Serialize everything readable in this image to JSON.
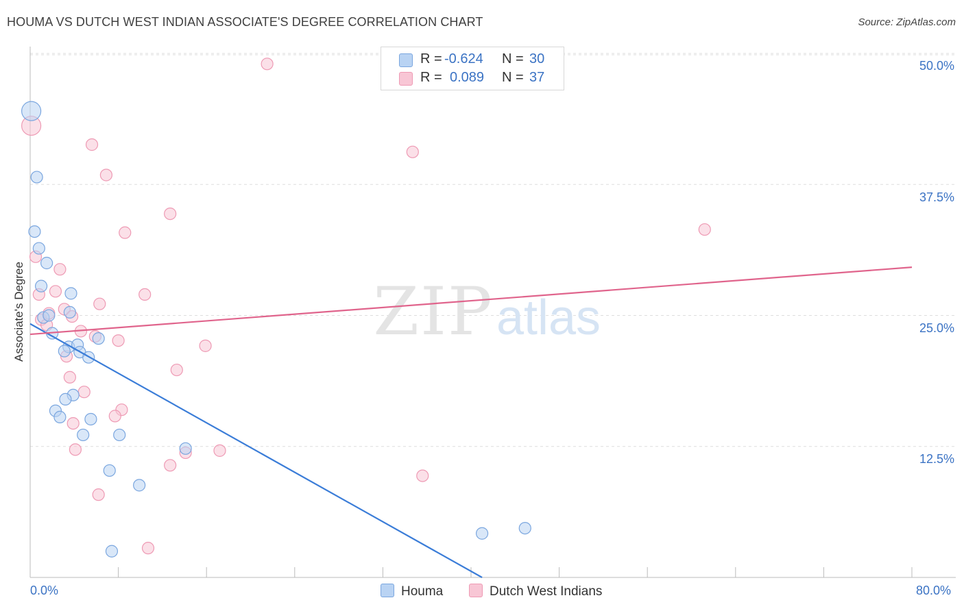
{
  "title": "HOUMA VS DUTCH WEST INDIAN ASSOCIATE'S DEGREE CORRELATION CHART",
  "source": "Source: ZipAtlas.com",
  "watermark": {
    "zip": "ZIP",
    "atlas": "atlas"
  },
  "colors": {
    "houma_fill": "#b9d3f3",
    "houma_stroke": "#7aa6df",
    "houma_line": "#3b7dd8",
    "dwi_fill": "#f8c6d5",
    "dwi_stroke": "#ee9ab4",
    "dwi_line": "#e0648c",
    "label_blue": "#3b73c4",
    "grid": "#dddddd"
  },
  "legend": {
    "row1": {
      "r_label": "R =",
      "r_value": "-0.624",
      "n_label": "N =",
      "n_value": "30"
    },
    "row2": {
      "r_label": "R =",
      "r_value": "0.089",
      "n_label": "N =",
      "n_value": "37"
    }
  },
  "chart_data": {
    "type": "scatter",
    "title": "HOUMA VS DUTCH WEST INDIAN ASSOCIATE'S DEGREE CORRELATION CHART",
    "xlabel": "",
    "ylabel": "Associate's Degree",
    "xlim": [
      0,
      80
    ],
    "ylim": [
      0,
      50
    ],
    "x_tick_labels": {
      "min": "0.0%",
      "max": "80.0%"
    },
    "y_ticks": [
      12.5,
      25.0,
      37.5,
      50.0
    ],
    "y_tick_labels": [
      "12.5%",
      "25.0%",
      "37.5%",
      "50.0%"
    ],
    "grid": true,
    "series": [
      {
        "name": "Houma",
        "r": -0.624,
        "n": 30,
        "trend": {
          "x0": 0,
          "y0": 24.2,
          "x1": 41,
          "y1": 0
        },
        "points": [
          {
            "x": 0.1,
            "y": 44.5,
            "big": true
          },
          {
            "x": 0.6,
            "y": 38.2
          },
          {
            "x": 0.4,
            "y": 33.0
          },
          {
            "x": 0.8,
            "y": 31.4
          },
          {
            "x": 1.5,
            "y": 30.0
          },
          {
            "x": 1.0,
            "y": 27.8
          },
          {
            "x": 3.7,
            "y": 27.1
          },
          {
            "x": 1.2,
            "y": 24.8
          },
          {
            "x": 1.7,
            "y": 25.0
          },
          {
            "x": 3.6,
            "y": 25.3
          },
          {
            "x": 2.0,
            "y": 23.3
          },
          {
            "x": 3.5,
            "y": 22.0
          },
          {
            "x": 6.2,
            "y": 22.8
          },
          {
            "x": 4.3,
            "y": 22.2
          },
          {
            "x": 4.5,
            "y": 21.5
          },
          {
            "x": 3.1,
            "y": 21.6
          },
          {
            "x": 5.3,
            "y": 21.0
          },
          {
            "x": 3.9,
            "y": 17.4
          },
          {
            "x": 3.2,
            "y": 17.0
          },
          {
            "x": 2.3,
            "y": 15.9
          },
          {
            "x": 2.7,
            "y": 15.3
          },
          {
            "x": 5.5,
            "y": 15.1
          },
          {
            "x": 4.8,
            "y": 13.6
          },
          {
            "x": 8.1,
            "y": 13.6
          },
          {
            "x": 14.1,
            "y": 12.3
          },
          {
            "x": 7.2,
            "y": 10.2
          },
          {
            "x": 9.9,
            "y": 8.8
          },
          {
            "x": 7.4,
            "y": 2.5
          },
          {
            "x": 41.0,
            "y": 4.2
          },
          {
            "x": 44.9,
            "y": 4.7
          }
        ]
      },
      {
        "name": "Dutch West Indians",
        "r": 0.089,
        "n": 37,
        "trend": {
          "x0": 0,
          "y0": 23.2,
          "x1": 80,
          "y1": 29.6
        },
        "points": [
          {
            "x": 0.1,
            "y": 43.1,
            "big": true
          },
          {
            "x": 21.5,
            "y": 49.0
          },
          {
            "x": 5.6,
            "y": 41.3
          },
          {
            "x": 34.7,
            "y": 40.6
          },
          {
            "x": 6.9,
            "y": 38.4
          },
          {
            "x": 12.7,
            "y": 34.7
          },
          {
            "x": 8.6,
            "y": 32.9
          },
          {
            "x": 61.2,
            "y": 33.2
          },
          {
            "x": 0.5,
            "y": 30.6
          },
          {
            "x": 2.7,
            "y": 29.4
          },
          {
            "x": 2.3,
            "y": 27.3
          },
          {
            "x": 0.8,
            "y": 27.0
          },
          {
            "x": 10.4,
            "y": 27.0
          },
          {
            "x": 6.3,
            "y": 26.1
          },
          {
            "x": 3.1,
            "y": 25.6
          },
          {
            "x": 3.8,
            "y": 24.9
          },
          {
            "x": 1.0,
            "y": 24.6
          },
          {
            "x": 1.5,
            "y": 24.1
          },
          {
            "x": 4.6,
            "y": 23.5
          },
          {
            "x": 5.9,
            "y": 23.0
          },
          {
            "x": 8.0,
            "y": 22.6
          },
          {
            "x": 15.9,
            "y": 22.1
          },
          {
            "x": 3.3,
            "y": 21.1
          },
          {
            "x": 13.3,
            "y": 19.8
          },
          {
            "x": 3.6,
            "y": 19.1
          },
          {
            "x": 4.9,
            "y": 17.7
          },
          {
            "x": 8.3,
            "y": 16.0
          },
          {
            "x": 7.7,
            "y": 15.4
          },
          {
            "x": 3.9,
            "y": 14.7
          },
          {
            "x": 4.1,
            "y": 12.2
          },
          {
            "x": 14.1,
            "y": 11.9
          },
          {
            "x": 17.2,
            "y": 12.1
          },
          {
            "x": 12.7,
            "y": 10.7
          },
          {
            "x": 35.6,
            "y": 9.7
          },
          {
            "x": 6.2,
            "y": 7.9
          },
          {
            "x": 10.7,
            "y": 2.8
          },
          {
            "x": 1.7,
            "y": 25.2
          }
        ]
      }
    ]
  }
}
